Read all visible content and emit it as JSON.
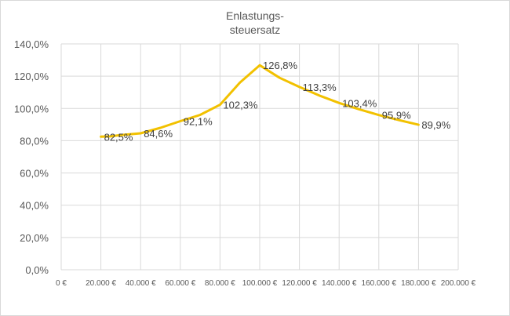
{
  "chart_data": {
    "type": "line",
    "title_lines": [
      "Enlastungs-",
      "steuersatz"
    ],
    "xlabel": "",
    "ylabel": "",
    "xlim": [
      0,
      200000
    ],
    "ylim": [
      0,
      140
    ],
    "grid": true,
    "legend": "none",
    "line_color": "#f2c100",
    "x_ticks": [
      0,
      20000,
      40000,
      60000,
      80000,
      100000,
      120000,
      140000,
      160000,
      180000,
      200000
    ],
    "x_tick_labels": [
      "0 €",
      "20.000 €",
      "40.000 €",
      "60.000 €",
      "80.000 €",
      "100.000 €",
      "120.000 €",
      "140.000 €",
      "160.000 €",
      "180.000 €",
      "200.000 €"
    ],
    "y_ticks": [
      0,
      20,
      40,
      60,
      80,
      100,
      120,
      140
    ],
    "y_tick_labels": [
      "0,0%",
      "20,0%",
      "40,0%",
      "60,0%",
      "80,0%",
      "100,0%",
      "120,0%",
      "140,0%"
    ],
    "series": [
      {
        "x": [
          20000,
          25000,
          30000,
          40000,
          50000,
          60000,
          70000,
          80000,
          90000,
          100000,
          110000,
          120000,
          130000,
          140000,
          150000,
          160000,
          170000,
          180000
        ],
        "values": [
          82.5,
          82.7,
          83.5,
          84.6,
          88.0,
          92.1,
          96.0,
          102.3,
          116.0,
          126.8,
          119.0,
          113.3,
          108.0,
          103.4,
          99.5,
          95.9,
          92.8,
          89.9
        ]
      }
    ],
    "data_labels": [
      {
        "x": 20000,
        "y": 82.5,
        "text": "82,5%"
      },
      {
        "x": 40000,
        "y": 84.6,
        "text": "84,6%"
      },
      {
        "x": 60000,
        "y": 92.1,
        "text": "92,1%"
      },
      {
        "x": 80000,
        "y": 102.3,
        "text": "102,3%"
      },
      {
        "x": 100000,
        "y": 126.8,
        "text": "126,8%"
      },
      {
        "x": 120000,
        "y": 113.3,
        "text": "113,3%"
      },
      {
        "x": 140000,
        "y": 103.4,
        "text": "103,4%"
      },
      {
        "x": 160000,
        "y": 95.9,
        "text": "95,9%"
      },
      {
        "x": 180000,
        "y": 89.9,
        "text": "89,9%"
      }
    ]
  }
}
